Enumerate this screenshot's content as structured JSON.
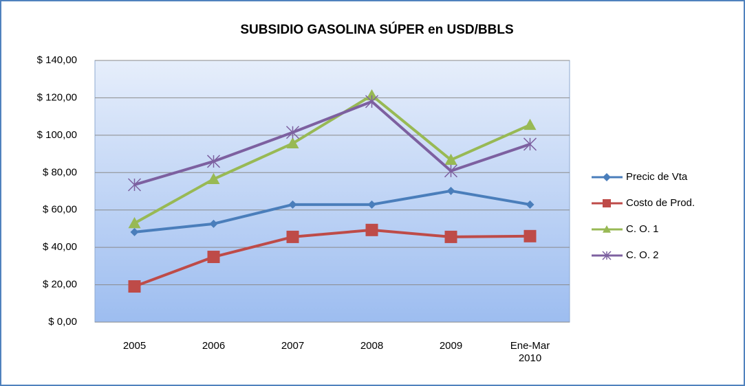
{
  "chart_data": {
    "type": "line",
    "title": "SUBSIDIO GASOLINA SÚPER  en USD/BBLS",
    "categories": [
      "2005",
      "2006",
      "2007",
      "2008",
      "2009",
      "Ene-Mar 2010"
    ],
    "series": [
      {
        "name": "Precic de Vta",
        "color": "#4a7ebb",
        "marker": "diamond",
        "values": [
          48.2,
          52.6,
          62.9,
          62.9,
          70.2,
          62.9
        ]
      },
      {
        "name": "Costo de Prod.",
        "color": "#be4b48",
        "marker": "square",
        "values": [
          19.1,
          34.9,
          45.6,
          49.3,
          45.6,
          46.0
        ]
      },
      {
        "name": "C. O. 1",
        "color": "#98b954",
        "marker": "triangle",
        "values": [
          52.9,
          76.5,
          95.6,
          121.3,
          86.8,
          105.5
        ]
      },
      {
        "name": "C. O. 2",
        "color": "#7d60a0",
        "marker": "x",
        "values": [
          73.5,
          86.0,
          101.5,
          118.0,
          80.9,
          95.2
        ]
      }
    ],
    "ylim": [
      0,
      140
    ],
    "yticks": [
      {
        "value": 0,
        "label": "$ 0,00"
      },
      {
        "value": 20,
        "label": "$ 20,00"
      },
      {
        "value": 40,
        "label": "$ 40,00"
      },
      {
        "value": 60,
        "label": "$ 60,00"
      },
      {
        "value": 80,
        "label": "$ 80,00"
      },
      {
        "value": 100,
        "label": "$ 100,00"
      },
      {
        "value": 120,
        "label": "$ 120,00"
      },
      {
        "value": 140,
        "label": "$ 140,00"
      }
    ],
    "grid": true,
    "legend": "right"
  }
}
